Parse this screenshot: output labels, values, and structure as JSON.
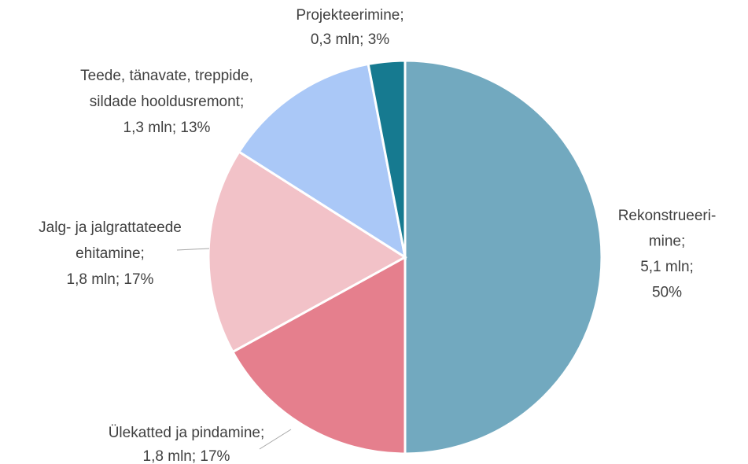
{
  "chart_data": {
    "type": "pie",
    "categories": [
      "Rekonstrueeri-\nmine;",
      "Ülekatted ja pindamine;",
      "Jalg- ja jalgrattateede\nehitamine;",
      "Teede, tänavate, treppide,\nsildade hooldusremont;",
      "Projekteerimine;"
    ],
    "values": [
      50,
      17,
      17,
      13,
      3
    ],
    "value_labels": [
      "5,1 mln;\n50%",
      "1,8 mln; 17%",
      "1,8 mln; 17%",
      "1,3 mln; 13%",
      "0,3 mln; 3%"
    ],
    "colors": [
      "#72a9bf",
      "#e57f8d",
      "#f2c2c8",
      "#aac8f7",
      "#167a90"
    ]
  }
}
